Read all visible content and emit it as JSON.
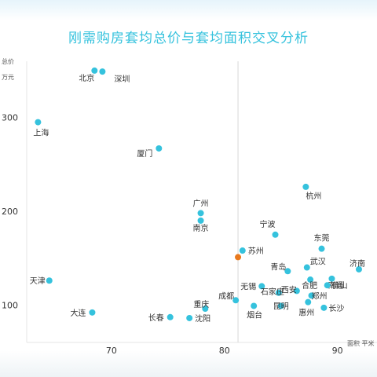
{
  "title": "刚需购房套均总价与套均面积交叉分析",
  "colors": {
    "title": "#35c2dd",
    "point": "#35c2dd",
    "highlight": "#e8791d",
    "ref_line": "#d9d9d9",
    "grid": "#eeeeee"
  },
  "chart_data": {
    "type": "scatter",
    "title": "刚需购房套均总价与套均面积交叉分析",
    "xlabel": "面积 平米",
    "ylabel": "总价 万元",
    "xlim": [
      62.5,
      93.5
    ],
    "ylim": [
      60,
      360
    ],
    "x_ticks": [
      70,
      80,
      90
    ],
    "y_ticks": [
      100,
      200,
      300
    ],
    "ref_line_x": 81.2,
    "grid": false,
    "legend": "none",
    "points": [
      {
        "name": "北京",
        "x": 68.5,
        "y": 350
      },
      {
        "name": "深圳",
        "x": 69.2,
        "y": 349
      },
      {
        "name": "上海",
        "x": 63.5,
        "y": 295
      },
      {
        "name": "厦门",
        "x": 74.2,
        "y": 267
      },
      {
        "name": "杭州",
        "x": 87.2,
        "y": 226
      },
      {
        "name": "广州",
        "x": 77.9,
        "y": 198
      },
      {
        "name": "南京",
        "x": 77.9,
        "y": 190
      },
      {
        "name": "宁波",
        "x": 84.5,
        "y": 175
      },
      {
        "name": "苏州",
        "x": 81.6,
        "y": 158
      },
      {
        "name": "东莞",
        "x": 88.6,
        "y": 160
      },
      {
        "name": "",
        "x": 81.2,
        "y": 151,
        "highlight": true
      },
      {
        "name": "青岛",
        "x": 85.6,
        "y": 136
      },
      {
        "name": "武汉",
        "x": 87.3,
        "y": 140
      },
      {
        "name": "济南",
        "x": 91.9,
        "y": 138
      },
      {
        "name": "天津",
        "x": 64.5,
        "y": 126
      },
      {
        "name": "南通",
        "x": 89.5,
        "y": 128
      },
      {
        "name": "无锡",
        "x": 83.3,
        "y": 120
      },
      {
        "name": "西安",
        "x": 86.4,
        "y": 115
      },
      {
        "name": "合肥",
        "x": 87.6,
        "y": 127
      },
      {
        "name": "佛山",
        "x": 89.1,
        "y": 121
      },
      {
        "name": "成都",
        "x": 81.0,
        "y": 105
      },
      {
        "name": "石家庄",
        "x": 84.8,
        "y": 113
      },
      {
        "name": "昆明",
        "x": 85.0,
        "y": 99
      },
      {
        "name": "郑州",
        "x": 87.7,
        "y": 110
      },
      {
        "name": "重庆",
        "x": 78.3,
        "y": 96
      },
      {
        "name": "烟台",
        "x": 82.6,
        "y": 99
      },
      {
        "name": "惠州",
        "x": 87.4,
        "y": 103
      },
      {
        "name": "长沙",
        "x": 88.8,
        "y": 97
      },
      {
        "name": "大连",
        "x": 68.3,
        "y": 92
      },
      {
        "name": "长春",
        "x": 75.2,
        "y": 87
      },
      {
        "name": "沈阳",
        "x": 76.9,
        "y": 86
      }
    ]
  }
}
